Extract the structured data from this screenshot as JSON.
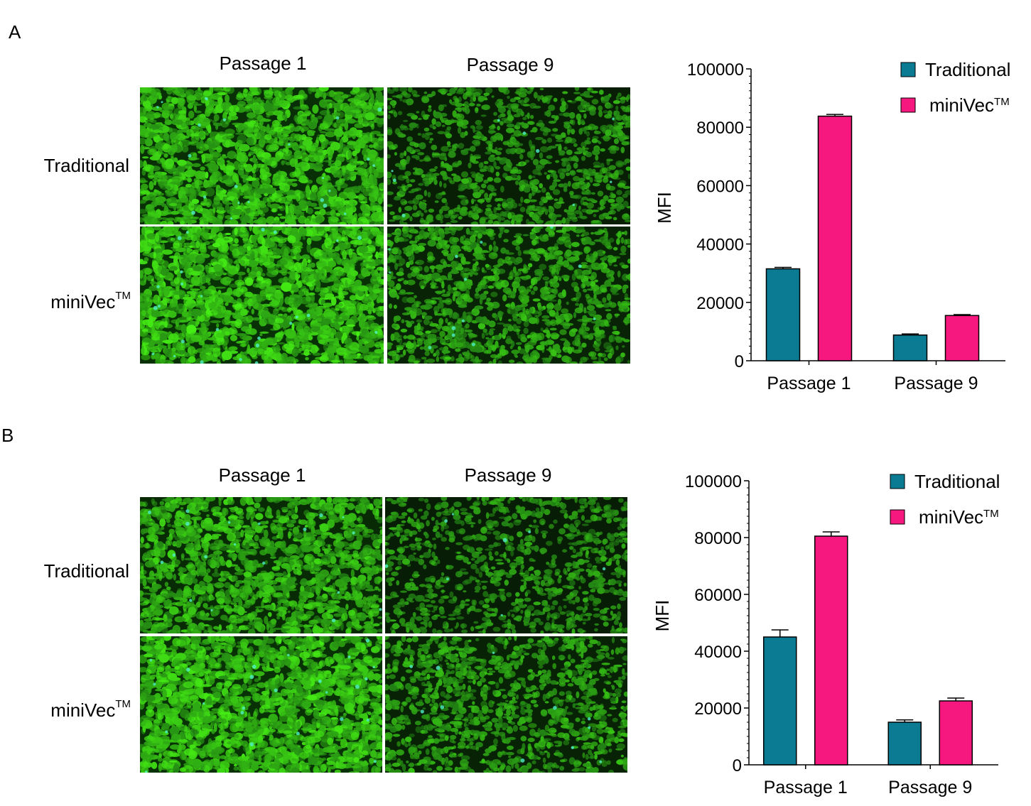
{
  "panels": [
    {
      "letter": "A",
      "columns": [
        "Passage 1",
        "Passage 9"
      ],
      "rows": [
        {
          "label": "Traditional"
        },
        {
          "label": "miniVec",
          "sup": "TM"
        }
      ],
      "images": [
        {
          "name": "micrograph-traditional-passage-1",
          "brightness": 0.9
        },
        {
          "name": "micrograph-traditional-passage-9",
          "brightness": 0.35
        },
        {
          "name": "micrograph-minivec-passage-1",
          "brightness": 1.0
        },
        {
          "name": "micrograph-minivec-passage-9",
          "brightness": 0.5
        }
      ]
    },
    {
      "letter": "B",
      "columns": [
        "Passage 1",
        "Passage 9"
      ],
      "rows": [
        {
          "label": "Traditional"
        },
        {
          "label": "miniVec",
          "sup": "TM"
        }
      ],
      "images": [
        {
          "name": "micrograph-traditional-passage-1",
          "brightness": 0.75
        },
        {
          "name": "micrograph-traditional-passage-9",
          "brightness": 0.3
        },
        {
          "name": "micrograph-minivec-passage-1",
          "brightness": 0.95
        },
        {
          "name": "micrograph-minivec-passage-9",
          "brightness": 0.45
        }
      ]
    }
  ],
  "colors": {
    "traditional": "#0a7b93",
    "minivec": "#f7187f",
    "cell_green": "#3ddc2a",
    "background_dark": "#0f2a0a"
  },
  "chart_data": [
    {
      "type": "bar",
      "categories": [
        "Passage 1",
        "Passage 9"
      ],
      "series": [
        {
          "name": "Traditional",
          "values": [
            31500,
            8800
          ],
          "errors": [
            500,
            400
          ]
        },
        {
          "name": "miniVec",
          "sup": "TM",
          "values": [
            83800,
            15500
          ],
          "errors": [
            600,
            300
          ]
        }
      ],
      "ylabel": "MFI",
      "ylim": [
        0,
        100000
      ],
      "yticks": [
        "0",
        "20000",
        "40000",
        "60000",
        "80000",
        "100000"
      ],
      "legend": "top-right"
    },
    {
      "type": "bar",
      "categories": [
        "Passage 1",
        "Passage 9"
      ],
      "series": [
        {
          "name": "Traditional",
          "values": [
            45000,
            15000
          ],
          "errors": [
            2500,
            800
          ]
        },
        {
          "name": "miniVec",
          "sup": "TM",
          "values": [
            80500,
            22500
          ],
          "errors": [
            1500,
            1000
          ]
        }
      ],
      "ylabel": "MFI",
      "ylim": [
        0,
        100000
      ],
      "yticks": [
        "0",
        "20000",
        "40000",
        "60000",
        "80000",
        "100000"
      ],
      "legend": "top-right"
    }
  ]
}
